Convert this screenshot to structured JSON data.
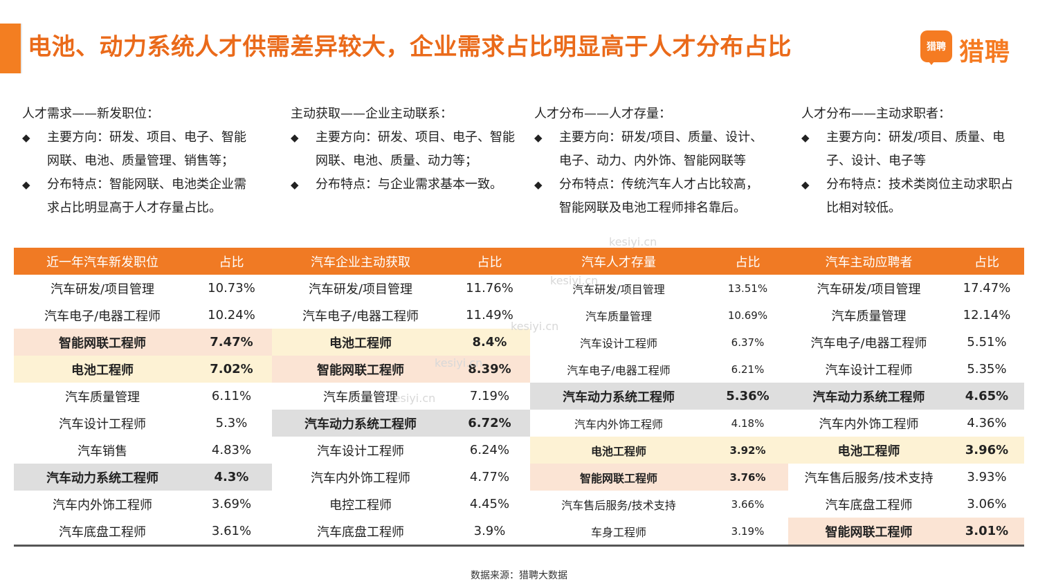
{
  "title": "电池、动力系统人才供需差异较大，企业需求占比明显高于人才分布占比",
  "logo": {
    "badge": "猎聘",
    "text": "猎聘"
  },
  "notes": [
    {
      "heading": "人才需求——新发职位：",
      "items": [
        "主要方向：研发、项目、电子、智能网联、电池、质量管理、销售等；",
        "分布特点：智能网联、电池类企业需求占比明显高于人才存量占比。"
      ]
    },
    {
      "heading": "主动获取——企业主动联系：",
      "items": [
        "主要方向：研发、项目、电子、智能网联、电池、质量、动力等；",
        "分布特点：与企业需求基本一致。"
      ]
    },
    {
      "heading": "人才分布——人才存量：",
      "items": [
        "主要方向：研发/项目、质量、设计、电子、动力、内外饰、智能网联等",
        "分布特点：传统汽车人才占比较高，智能网联及电池工程师排名靠后。"
      ]
    },
    {
      "heading": "人才分布——主动求职者：",
      "items": [
        "主要方向：研发/项目、质量、电子、设计、电子等",
        "分布特点：技术类岗位主动求职占比相对较低。"
      ]
    }
  ],
  "bullet": "◆",
  "tables": [
    {
      "header": [
        "近一年汽车新发职位",
        "占比"
      ],
      "rows": [
        {
          "name": "汽车研发/项目管理",
          "pct": "10.73%",
          "hl": ""
        },
        {
          "name": "汽车电子/电器工程师",
          "pct": "10.24%",
          "hl": ""
        },
        {
          "name": "智能网联工程师",
          "pct": "7.47%",
          "hl": "orange"
        },
        {
          "name": "电池工程师",
          "pct": "7.02%",
          "hl": "yellow"
        },
        {
          "name": "汽车质量管理",
          "pct": "6.11%",
          "hl": ""
        },
        {
          "name": "汽车设计工程师",
          "pct": "5.3%",
          "hl": ""
        },
        {
          "name": "汽车销售",
          "pct": "4.83%",
          "hl": ""
        },
        {
          "name": "汽车动力系统工程师",
          "pct": "4.3%",
          "hl": "gray"
        },
        {
          "name": "汽车内外饰工程师",
          "pct": "3.69%",
          "hl": ""
        },
        {
          "name": "汽车底盘工程师",
          "pct": "3.61%",
          "hl": ""
        }
      ]
    },
    {
      "header": [
        "汽车企业主动获取",
        "占比"
      ],
      "rows": [
        {
          "name": "汽车研发/项目管理",
          "pct": "11.76%",
          "hl": ""
        },
        {
          "name": "汽车电子/电器工程师",
          "pct": "11.49%",
          "hl": ""
        },
        {
          "name": "电池工程师",
          "pct": "8.4%",
          "hl": "yellow"
        },
        {
          "name": "智能网联工程师",
          "pct": "8.39%",
          "hl": "orange"
        },
        {
          "name": "汽车质量管理",
          "pct": "7.19%",
          "hl": ""
        },
        {
          "name": "汽车动力系统工程师",
          "pct": "6.72%",
          "hl": "gray"
        },
        {
          "name": "汽车设计工程师",
          "pct": "6.24%",
          "hl": ""
        },
        {
          "name": "汽车内外饰工程师",
          "pct": "4.77%",
          "hl": ""
        },
        {
          "name": "电控工程师",
          "pct": "4.45%",
          "hl": ""
        },
        {
          "name": "汽车底盘工程师",
          "pct": "3.9%",
          "hl": ""
        }
      ]
    },
    {
      "header": [
        "汽车人才存量",
        "占比"
      ],
      "rows": [
        {
          "name": "汽车研发/项目管理",
          "pct": "13.51%",
          "hl": "",
          "small": true
        },
        {
          "name": "汽车质量管理",
          "pct": "10.69%",
          "hl": "",
          "small": true
        },
        {
          "name": "汽车设计工程师",
          "pct": "6.37%",
          "hl": "",
          "small": true
        },
        {
          "name": "汽车电子/电器工程师",
          "pct": "6.21%",
          "hl": "",
          "small": true
        },
        {
          "name": "汽车动力系统工程师",
          "pct": "5.36%",
          "hl": "gray"
        },
        {
          "name": "汽车内外饰工程师",
          "pct": "4.18%",
          "hl": "",
          "small": true
        },
        {
          "name": "电池工程师",
          "pct": "3.92%",
          "hl": "yellow",
          "small": true
        },
        {
          "name": "智能网联工程师",
          "pct": "3.76%",
          "hl": "orange",
          "small": true
        },
        {
          "name": "汽车售后服务/技术支持",
          "pct": "3.66%",
          "hl": "",
          "small": true
        },
        {
          "name": "车身工程师",
          "pct": "3.19%",
          "hl": "",
          "small": true
        }
      ]
    },
    {
      "header": [
        "汽车主动应聘者",
        "占比"
      ],
      "rows": [
        {
          "name": "汽车研发/项目管理",
          "pct": "17.47%",
          "hl": ""
        },
        {
          "name": "汽车质量管理",
          "pct": "12.14%",
          "hl": ""
        },
        {
          "name": "汽车电子/电器工程师",
          "pct": "5.51%",
          "hl": ""
        },
        {
          "name": "汽车设计工程师",
          "pct": "5.35%",
          "hl": ""
        },
        {
          "name": "汽车动力系统工程师",
          "pct": "4.65%",
          "hl": "gray"
        },
        {
          "name": "汽车内外饰工程师",
          "pct": "4.36%",
          "hl": ""
        },
        {
          "name": "电池工程师",
          "pct": "3.96%",
          "hl": "yellow"
        },
        {
          "name": "汽车售后服务/技术支持",
          "pct": "3.93%",
          "hl": ""
        },
        {
          "name": "汽车底盘工程师",
          "pct": "3.06%",
          "hl": ""
        },
        {
          "name": "智能网联工程师",
          "pct": "3.01%",
          "hl": "orange"
        }
      ]
    }
  ],
  "source": "数据来源：猎聘大数据",
  "watermark": "kesiyi.cn",
  "colors": {
    "accent": "#f07a24",
    "highlight_orange": "#fbe4d4",
    "highlight_yellow": "#fdf2d4",
    "highlight_gray": "#dedede"
  }
}
